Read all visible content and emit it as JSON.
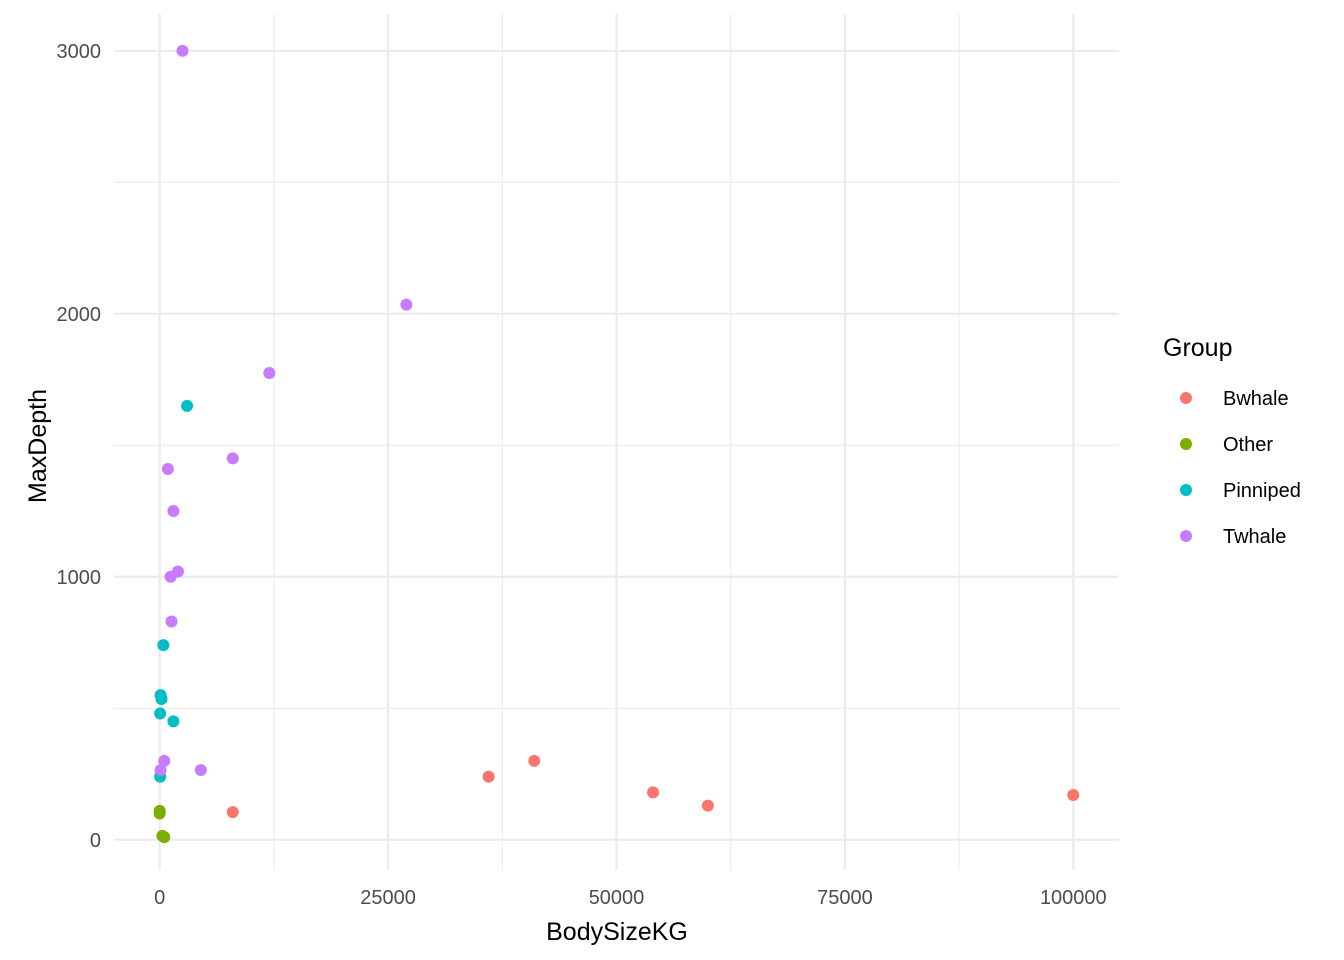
{
  "chart_data": {
    "type": "scatter",
    "xlabel": "BodySizeKG",
    "ylabel": "MaxDepth",
    "xlim": [
      -5000,
      105000
    ],
    "ylim": [
      -115,
      3140
    ],
    "x_ticks": [
      0,
      25000,
      50000,
      75000,
      100000
    ],
    "x_tick_labels": [
      "0",
      "25000",
      "50000",
      "75000",
      "100000"
    ],
    "y_ticks": [
      0,
      1000,
      2000,
      3000
    ],
    "y_tick_labels": [
      "0",
      "1000",
      "2000",
      "3000"
    ],
    "grid": true,
    "legend": {
      "title": "Group",
      "position": "right",
      "entries": [
        {
          "name": "Bwhale",
          "color": "#F8766D"
        },
        {
          "name": "Other",
          "color": "#7CAE00"
        },
        {
          "name": "Pinniped",
          "color": "#00BFC4"
        },
        {
          "name": "Twhale",
          "color": "#C77CFF"
        }
      ]
    },
    "series": [
      {
        "name": "Bwhale",
        "color": "#F8766D",
        "points": [
          {
            "x": 8000,
            "y": 105
          },
          {
            "x": 36000,
            "y": 240
          },
          {
            "x": 41000,
            "y": 300
          },
          {
            "x": 54000,
            "y": 180
          },
          {
            "x": 60000,
            "y": 130
          },
          {
            "x": 100000,
            "y": 170
          }
        ]
      },
      {
        "name": "Other",
        "color": "#7CAE00",
        "points": [
          {
            "x": 0,
            "y": 110
          },
          {
            "x": 0,
            "y": 100
          },
          {
            "x": 300,
            "y": 15
          },
          {
            "x": 500,
            "y": 10
          }
        ]
      },
      {
        "name": "Pinniped",
        "color": "#00BFC4",
        "points": [
          {
            "x": 3000,
            "y": 1650
          },
          {
            "x": 400,
            "y": 740
          },
          {
            "x": 100,
            "y": 550
          },
          {
            "x": 200,
            "y": 535
          },
          {
            "x": 50,
            "y": 480
          },
          {
            "x": 1500,
            "y": 450
          },
          {
            "x": 50,
            "y": 240
          }
        ]
      },
      {
        "name": "Twhale",
        "color": "#C77CFF",
        "points": [
          {
            "x": 2500,
            "y": 3000
          },
          {
            "x": 27000,
            "y": 2035
          },
          {
            "x": 12000,
            "y": 1775
          },
          {
            "x": 8000,
            "y": 1450
          },
          {
            "x": 900,
            "y": 1410
          },
          {
            "x": 1500,
            "y": 1250
          },
          {
            "x": 2000,
            "y": 1020
          },
          {
            "x": 1200,
            "y": 1000
          },
          {
            "x": 1300,
            "y": 830
          },
          {
            "x": 500,
            "y": 300
          },
          {
            "x": 100,
            "y": 265
          },
          {
            "x": 4500,
            "y": 265
          }
        ]
      }
    ]
  }
}
